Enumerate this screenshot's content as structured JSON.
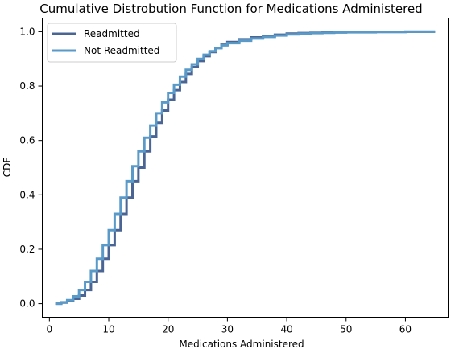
{
  "chart_data": {
    "type": "line",
    "title": "Cumulative Distrobution Function for Medications Administered",
    "xlabel": "Medications Administered",
    "ylabel": "CDF",
    "xlim": [
      -1.2,
      67.2
    ],
    "ylim": [
      -0.05,
      1.05
    ],
    "xticks": [
      0,
      10,
      20,
      30,
      40,
      50,
      60
    ],
    "yticks": [
      0.0,
      0.2,
      0.4,
      0.6,
      0.8,
      1.0
    ],
    "ytick_labels": [
      "0.0",
      "0.2",
      "0.4",
      "0.6",
      "0.8",
      "1.0"
    ],
    "grid": false,
    "legend_position": "top-left",
    "step": true,
    "series": [
      {
        "name": "Readmitted",
        "color": "#4a6494",
        "x": [
          1,
          2,
          3,
          4,
          5,
          6,
          7,
          8,
          9,
          10,
          11,
          12,
          13,
          14,
          15,
          16,
          17,
          18,
          19,
          20,
          21,
          22,
          23,
          24,
          25,
          26,
          27,
          28,
          29,
          30,
          32,
          34,
          36,
          38,
          40,
          42,
          44,
          46,
          48,
          50,
          55,
          60,
          65
        ],
        "y": [
          0.0,
          0.004,
          0.01,
          0.018,
          0.03,
          0.05,
          0.08,
          0.12,
          0.165,
          0.215,
          0.27,
          0.33,
          0.39,
          0.45,
          0.5,
          0.56,
          0.615,
          0.665,
          0.71,
          0.75,
          0.785,
          0.815,
          0.845,
          0.87,
          0.892,
          0.91,
          0.925,
          0.94,
          0.952,
          0.962,
          0.972,
          0.979,
          0.985,
          0.989,
          0.993,
          0.995,
          0.996,
          0.997,
          0.998,
          0.999,
          0.9995,
          1.0,
          1.0
        ]
      },
      {
        "name": "Not Readmitted",
        "color": "#5a9ac8",
        "x": [
          1,
          2,
          3,
          4,
          5,
          6,
          7,
          8,
          9,
          10,
          11,
          12,
          13,
          14,
          15,
          16,
          17,
          18,
          19,
          20,
          21,
          22,
          23,
          24,
          25,
          26,
          27,
          28,
          29,
          30,
          32,
          34,
          36,
          38,
          40,
          42,
          44,
          46,
          48,
          50,
          55,
          60,
          65
        ],
        "y": [
          0.0,
          0.005,
          0.013,
          0.027,
          0.05,
          0.08,
          0.12,
          0.165,
          0.215,
          0.27,
          0.33,
          0.39,
          0.45,
          0.505,
          0.56,
          0.61,
          0.655,
          0.7,
          0.74,
          0.775,
          0.805,
          0.835,
          0.86,
          0.88,
          0.9,
          0.915,
          0.928,
          0.94,
          0.95,
          0.958,
          0.967,
          0.975,
          0.981,
          0.986,
          0.99,
          0.993,
          0.995,
          0.996,
          0.997,
          0.998,
          0.999,
          1.0,
          1.0
        ]
      }
    ]
  }
}
